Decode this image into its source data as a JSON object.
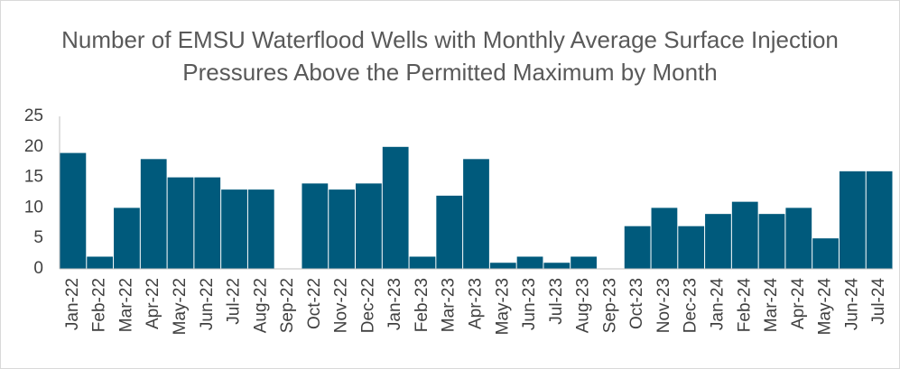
{
  "chart_data": {
    "type": "bar",
    "title": "Number of EMSU Waterflood Wells with Monthly Average Surface Injection Pressures Above the Permitted Maximum by Month",
    "categories": [
      "Jan-22",
      "Feb-22",
      "Mar-22",
      "Apr-22",
      "May-22",
      "Jun-22",
      "Jul-22",
      "Aug-22",
      "Sep-22",
      "Oct-22",
      "Nov-22",
      "Dec-22",
      "Jan-23",
      "Feb-23",
      "Mar-23",
      "Apr-23",
      "May-23",
      "Jun-23",
      "Jul-23",
      "Aug-23",
      "Sep-23",
      "Oct-23",
      "Nov-23",
      "Dec-23",
      "Jan-24",
      "Feb-24",
      "Mar-24",
      "Apr-24",
      "May-24",
      "Jun-24",
      "Jul-24"
    ],
    "values": [
      19,
      2,
      10,
      18,
      15,
      15,
      13,
      13,
      0,
      14,
      13,
      14,
      20,
      2,
      12,
      18,
      1,
      2,
      1,
      2,
      0,
      7,
      10,
      7,
      9,
      11,
      9,
      10,
      5,
      16,
      16
    ],
    "color": "#005a7c",
    "ylim": [
      0,
      25
    ],
    "yticks": [
      0,
      5,
      10,
      15,
      20,
      25
    ],
    "grid": false
  }
}
